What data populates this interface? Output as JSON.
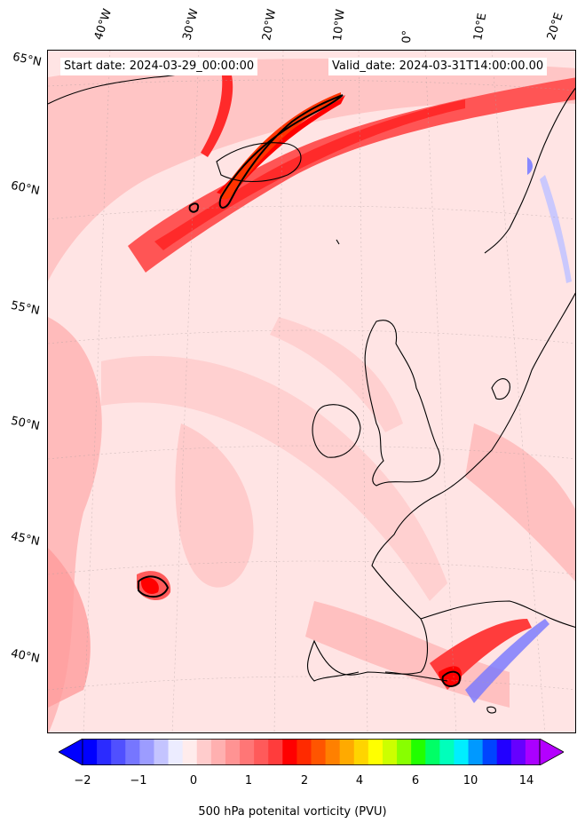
{
  "info": {
    "start_date": "Start date: 2024-03-29_00:00:00",
    "valid_date": "Valid_date: 2024-03-31T14:00:00.00"
  },
  "lon_labels": [
    "40°W",
    "30°W",
    "20°W",
    "10°W",
    "0°",
    "10°E",
    "20°E"
  ],
  "lat_labels": [
    "65°N",
    "60°N",
    "55°N",
    "50°N",
    "45°N",
    "40°N"
  ],
  "colorbar": {
    "label": "500 hPa potenital vorticity (PVU)",
    "ticks": [
      "−2",
      "−1",
      "0",
      "1",
      "2",
      "4",
      "6",
      "10",
      "14"
    ],
    "colors": [
      "#0000ff",
      "#2b2bff",
      "#5050ff",
      "#7676ff",
      "#9c9cff",
      "#c4c4ff",
      "#ececff",
      "#ffecec",
      "#ffcccc",
      "#ffb0b0",
      "#ff9393",
      "#ff7676",
      "#ff5a5a",
      "#ff3c3c",
      "#ff0000",
      "#ff2a00",
      "#ff5500",
      "#ff8000",
      "#ffaa00",
      "#ffd400",
      "#ffff00",
      "#ccff00",
      "#88ff00",
      "#22ff00",
      "#00ff66",
      "#00ffbb",
      "#00eeff",
      "#0099ff",
      "#0044ff",
      "#2200ff",
      "#6600ff",
      "#aa00ff"
    ],
    "min_color": "#0000ff",
    "max_color": "#b400ff"
  }
}
